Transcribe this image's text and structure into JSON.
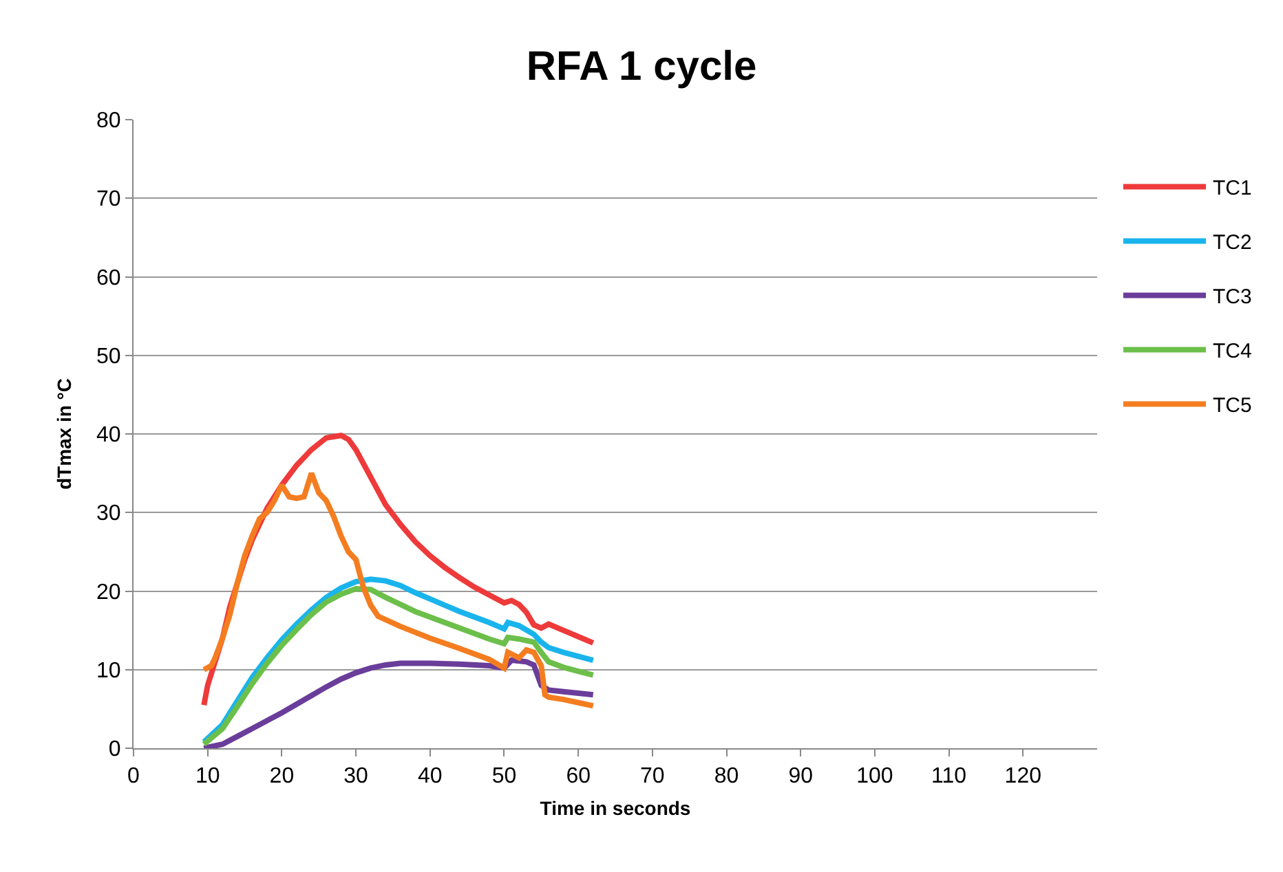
{
  "chart_data": {
    "type": "line",
    "title": "RFA 1 cycle",
    "xlabel": "Time in seconds",
    "ylabel": "dTmax in °C",
    "xlim": [
      0,
      130
    ],
    "xticks": [
      0,
      10,
      20,
      30,
      40,
      50,
      60,
      70,
      80,
      90,
      100,
      110,
      120
    ],
    "ylim": [
      0,
      80
    ],
    "yticks": [
      0,
      10,
      20,
      30,
      40,
      50,
      60,
      70,
      80
    ],
    "grid": "y",
    "legend": "right",
    "marker": "none",
    "line_style": "solid",
    "series": [
      {
        "name": "TC1",
        "color": "#ee3a3a",
        "x": [
          9.5,
          10,
          11,
          12,
          13,
          14,
          15,
          16,
          17,
          18,
          20,
          22,
          24,
          26,
          28,
          29,
          30,
          32,
          34,
          36,
          38,
          40,
          42,
          44,
          46,
          48,
          50,
          51,
          52,
          53,
          54,
          55,
          56,
          58,
          60,
          62
        ],
        "values": [
          5.5,
          8,
          11,
          14,
          18,
          21,
          24,
          26.5,
          28.5,
          30.5,
          33.5,
          36,
          38,
          39.5,
          39.8,
          39.3,
          38,
          34.5,
          31,
          28.5,
          26.3,
          24.5,
          23,
          21.7,
          20.5,
          19.5,
          18.5,
          18.8,
          18.3,
          17.3,
          15.7,
          15.3,
          15.8,
          15,
          14.2,
          13.4
        ]
      },
      {
        "name": "TC2",
        "color": "#1ab4ec",
        "x": [
          9.5,
          12,
          14,
          16,
          18,
          20,
          22,
          24,
          26,
          28,
          30,
          32,
          34,
          36,
          38,
          40,
          42,
          44,
          46,
          48,
          50,
          50.5,
          52,
          54,
          55,
          56,
          58,
          60,
          62
        ],
        "values": [
          0.8,
          3,
          6,
          9,
          11.5,
          13.8,
          15.8,
          17.6,
          19.2,
          20.4,
          21.2,
          21.5,
          21.3,
          20.7,
          19.8,
          19,
          18.2,
          17.4,
          16.7,
          16,
          15.2,
          16,
          15.6,
          14.5,
          13.5,
          12.8,
          12.2,
          11.7,
          11.2
        ]
      },
      {
        "name": "TC3",
        "color": "#6a3d9a",
        "x": [
          9.5,
          12,
          14,
          16,
          18,
          20,
          22,
          24,
          26,
          28,
          30,
          32,
          34,
          36,
          40,
          44,
          48,
          50,
          51,
          53,
          54,
          55,
          56,
          58,
          60,
          62
        ],
        "values": [
          0,
          0.5,
          1.5,
          2.5,
          3.5,
          4.5,
          5.6,
          6.7,
          7.8,
          8.8,
          9.6,
          10.2,
          10.6,
          10.8,
          10.8,
          10.7,
          10.5,
          10.2,
          11.2,
          11,
          10.6,
          8,
          7.4,
          7.2,
          7,
          6.8
        ]
      },
      {
        "name": "TC4",
        "color": "#6cbf4a",
        "x": [
          9.5,
          12,
          14,
          16,
          18,
          20,
          22,
          24,
          26,
          28,
          30,
          32,
          34,
          36,
          38,
          40,
          42,
          44,
          46,
          48,
          50,
          50.5,
          52,
          54,
          55,
          56,
          58,
          60,
          62
        ],
        "values": [
          0.5,
          2.5,
          5.3,
          8.2,
          10.8,
          13.1,
          15.1,
          17,
          18.6,
          19.6,
          20.3,
          20.2,
          19.2,
          18.3,
          17.4,
          16.7,
          16,
          15.3,
          14.6,
          13.9,
          13.3,
          14.1,
          13.9,
          13.5,
          12.2,
          11,
          10.3,
          9.8,
          9.3
        ]
      },
      {
        "name": "TC5",
        "color": "#f47d20",
        "x": [
          9.5,
          10.5,
          11,
          12,
          13,
          14,
          15,
          16,
          17,
          18,
          19,
          20,
          21,
          22,
          23,
          24,
          25,
          26,
          27,
          28,
          29,
          30,
          31,
          32,
          33,
          36,
          40,
          44,
          46,
          48,
          50,
          50.5,
          52,
          53,
          54,
          55,
          55.5,
          56,
          58,
          60,
          62
        ],
        "values": [
          10,
          10.5,
          11.5,
          14,
          17,
          21,
          24.5,
          27,
          29.2,
          30,
          31.5,
          33.5,
          32,
          31.8,
          32,
          35,
          32.5,
          31.5,
          29.5,
          27,
          25,
          24,
          20.5,
          18.2,
          16.8,
          15.5,
          14,
          12.7,
          12,
          11.3,
          10.2,
          12.2,
          11.5,
          12.5,
          12.2,
          10.5,
          6.8,
          6.5,
          6.2,
          5.8,
          5.4
        ]
      }
    ]
  }
}
